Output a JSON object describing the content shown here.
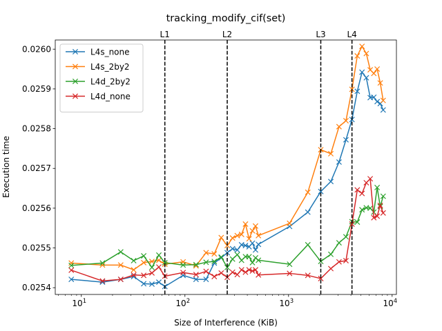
{
  "chart_data": {
    "type": "line",
    "title": "tracking_modify_cif(set)",
    "xlabel": "Size of Interference (KiB)",
    "ylabel": "Execution time",
    "xscale": "log",
    "xlim": [
      5.6,
      11000
    ],
    "ylim": [
      0.025383,
      0.026023
    ],
    "grid": false,
    "legend_position": "top-left",
    "x_tick_labels": [
      "10^1",
      "10^2",
      "10^3",
      "10^4"
    ],
    "y_ticks": [
      0.0254,
      0.0255,
      0.0256,
      0.0257,
      0.0258,
      0.0259,
      0.026
    ],
    "y_tick_labels": [
      "0.0254",
      "0.0255",
      "0.0256",
      "0.0257",
      "0.0258",
      "0.0259",
      "0.0260"
    ],
    "vlines": [
      {
        "label": "L1",
        "x": 64
      },
      {
        "label": "L2",
        "x": 256
      },
      {
        "label": "L3",
        "x": 2048
      },
      {
        "label": "L4",
        "x": 4096
      }
    ],
    "series": [
      {
        "name": "L4s_none",
        "color": "#1f77b4",
        "points": [
          [
            8,
            0.025421
          ],
          [
            16,
            0.025414
          ],
          [
            24,
            0.025421
          ],
          [
            32,
            0.025428
          ],
          [
            40,
            0.02541
          ],
          [
            48,
            0.025409
          ],
          [
            56,
            0.025414
          ],
          [
            64,
            0.025403
          ],
          [
            96,
            0.025431
          ],
          [
            128,
            0.025421
          ],
          [
            160,
            0.025421
          ],
          [
            192,
            0.025462
          ],
          [
            224,
            0.025475
          ],
          [
            256,
            0.025488
          ],
          [
            288,
            0.025498
          ],
          [
            320,
            0.025495
          ],
          [
            352,
            0.025508
          ],
          [
            384,
            0.025506
          ],
          [
            416,
            0.025503
          ],
          [
            448,
            0.025512
          ],
          [
            480,
            0.025495
          ],
          [
            512,
            0.025509
          ],
          [
            1024,
            0.025554
          ],
          [
            1536,
            0.02559
          ],
          [
            2048,
            0.025642
          ],
          [
            2560,
            0.025667
          ],
          [
            3072,
            0.025716
          ],
          [
            3584,
            0.025772
          ],
          [
            4096,
            0.025823
          ],
          [
            4608,
            0.025894
          ],
          [
            5120,
            0.025942
          ],
          [
            5632,
            0.025928
          ],
          [
            6144,
            0.025878
          ],
          [
            6656,
            0.025879
          ],
          [
            7168,
            0.025868
          ],
          [
            7680,
            0.025863
          ],
          [
            8192,
            0.025847
          ]
        ]
      },
      {
        "name": "L4s_2by2",
        "color": "#ff7f0e",
        "points": [
          [
            8,
            0.025462
          ],
          [
            16,
            0.025457
          ],
          [
            24,
            0.025457
          ],
          [
            32,
            0.025445
          ],
          [
            40,
            0.025463
          ],
          [
            48,
            0.025466
          ],
          [
            56,
            0.025469
          ],
          [
            64,
            0.025459
          ],
          [
            96,
            0.025465
          ],
          [
            128,
            0.025455
          ],
          [
            160,
            0.025488
          ],
          [
            192,
            0.025485
          ],
          [
            224,
            0.025526
          ],
          [
            256,
            0.025506
          ],
          [
            288,
            0.025525
          ],
          [
            320,
            0.025531
          ],
          [
            352,
            0.025534
          ],
          [
            384,
            0.02556
          ],
          [
            416,
            0.025523
          ],
          [
            448,
            0.025543
          ],
          [
            480,
            0.025555
          ],
          [
            512,
            0.025531
          ],
          [
            1024,
            0.025562
          ],
          [
            1536,
            0.02564
          ],
          [
            2048,
            0.025747
          ],
          [
            2560,
            0.025737
          ],
          [
            3072,
            0.025805
          ],
          [
            3584,
            0.02582
          ],
          [
            4096,
            0.025899
          ],
          [
            4608,
            0.025983
          ],
          [
            5120,
            0.026007
          ],
          [
            5632,
            0.025989
          ],
          [
            6144,
            0.025948
          ],
          [
            6656,
            0.025939
          ],
          [
            7168,
            0.02595
          ],
          [
            7680,
            0.025915
          ],
          [
            8192,
            0.025871
          ]
        ]
      },
      {
        "name": "L4d_2by2",
        "color": "#2ca02c",
        "points": [
          [
            8,
            0.025456
          ],
          [
            16,
            0.025462
          ],
          [
            24,
            0.02549
          ],
          [
            32,
            0.025468
          ],
          [
            40,
            0.02548
          ],
          [
            48,
            0.025451
          ],
          [
            56,
            0.025482
          ],
          [
            64,
            0.025463
          ],
          [
            96,
            0.025457
          ],
          [
            128,
            0.025458
          ],
          [
            160,
            0.025464
          ],
          [
            192,
            0.025466
          ],
          [
            224,
            0.025477
          ],
          [
            256,
            0.025451
          ],
          [
            288,
            0.025472
          ],
          [
            320,
            0.025483
          ],
          [
            352,
            0.025469
          ],
          [
            384,
            0.025478
          ],
          [
            416,
            0.025478
          ],
          [
            448,
            0.025463
          ],
          [
            480,
            0.025475
          ],
          [
            512,
            0.025469
          ],
          [
            1024,
            0.025459
          ],
          [
            1536,
            0.025508
          ],
          [
            2048,
            0.025466
          ],
          [
            2560,
            0.025484
          ],
          [
            3072,
            0.025513
          ],
          [
            3584,
            0.025528
          ],
          [
            4096,
            0.025566
          ],
          [
            4608,
            0.025565
          ],
          [
            5120,
            0.025596
          ],
          [
            5632,
            0.025601
          ],
          [
            6144,
            0.0256
          ],
          [
            6656,
            0.02559
          ],
          [
            7168,
            0.025652
          ],
          [
            7680,
            0.025604
          ],
          [
            8192,
            0.02563
          ]
        ]
      },
      {
        "name": "L4d_none",
        "color": "#d62728",
        "points": [
          [
            8,
            0.025444
          ],
          [
            16,
            0.025417
          ],
          [
            24,
            0.025421
          ],
          [
            32,
            0.025432
          ],
          [
            40,
            0.025431
          ],
          [
            48,
            0.025437
          ],
          [
            56,
            0.025452
          ],
          [
            64,
            0.025429
          ],
          [
            96,
            0.025438
          ],
          [
            128,
            0.025433
          ],
          [
            160,
            0.025441
          ],
          [
            192,
            0.025428
          ],
          [
            224,
            0.025437
          ],
          [
            256,
            0.025426
          ],
          [
            288,
            0.025439
          ],
          [
            320,
            0.025433
          ],
          [
            352,
            0.025445
          ],
          [
            384,
            0.025439
          ],
          [
            416,
            0.025445
          ],
          [
            448,
            0.025442
          ],
          [
            480,
            0.025445
          ],
          [
            512,
            0.025432
          ],
          [
            1024,
            0.025436
          ],
          [
            1536,
            0.025431
          ],
          [
            2048,
            0.025423
          ],
          [
            2560,
            0.025448
          ],
          [
            3072,
            0.025465
          ],
          [
            3584,
            0.025468
          ],
          [
            4096,
            0.02556
          ],
          [
            4608,
            0.025646
          ],
          [
            5120,
            0.025637
          ],
          [
            5632,
            0.025664
          ],
          [
            6144,
            0.025674
          ],
          [
            6656,
            0.025576
          ],
          [
            7168,
            0.02558
          ],
          [
            7680,
            0.025607
          ],
          [
            8192,
            0.025588
          ]
        ]
      }
    ]
  }
}
